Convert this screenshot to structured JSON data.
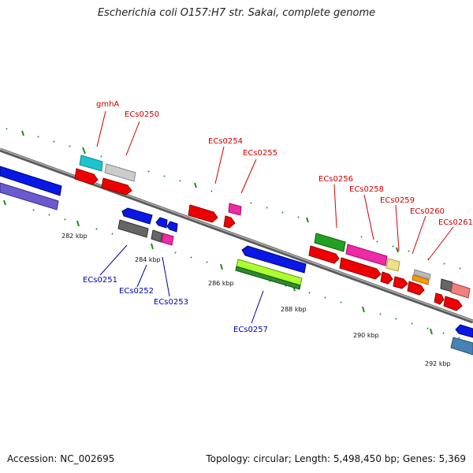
{
  "title": "Escherichia coli O157:H7 str. Sakai, complete genome",
  "footer": {
    "accession": "Accession: NC_002695",
    "summary": "Topology: circular; Length: 5,498,450 bp; Genes: 5,369"
  },
  "tick_labels": [
    "282 kbp",
    "284 kbp",
    "286 kbp",
    "288 kbp",
    "290 kbp",
    "292 kbp"
  ],
  "gene_labels": {
    "top": [
      "gmhA",
      "ECs0250",
      "ECs0254",
      "ECs0255",
      "ECs0256",
      "ECs0258",
      "ECs0259",
      "ECs0260",
      "ECs0261"
    ],
    "bottom": [
      "ECs0251",
      "ECs0252",
      "ECs0253",
      "ECs0257"
    ]
  },
  "colors": {
    "top_label": "#cc0000",
    "bottom_label": "#0000aa",
    "backbone": "#808080",
    "tick": "#228b22"
  }
}
